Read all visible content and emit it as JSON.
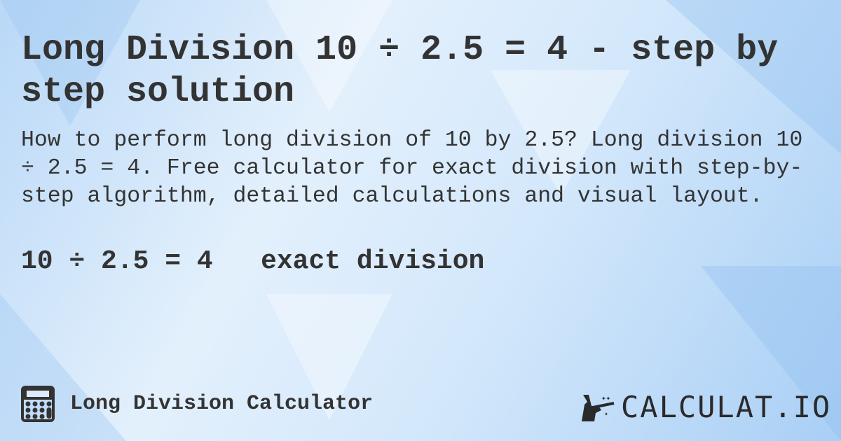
{
  "title": "Long Division 10 ÷ 2.5 = 4 - step by step solution",
  "description": "How to perform long division of 10 by 2.5? Long division 10 ÷ 2.5 = 4. Free calculator for exact division with step-by-step algorithm, detailed calculations and visual layout.",
  "result": {
    "equation": "10 ÷ 2.5 = 4",
    "type": "exact division"
  },
  "footer": {
    "calculator_name": "Long Division Calculator",
    "calculator_icon": "calculator-icon"
  },
  "logo": {
    "text": "CALCULAT.IO",
    "icon": "magic-hand-wand-icon"
  },
  "colors": {
    "text": "#333333",
    "background": "#cfe4fa"
  }
}
